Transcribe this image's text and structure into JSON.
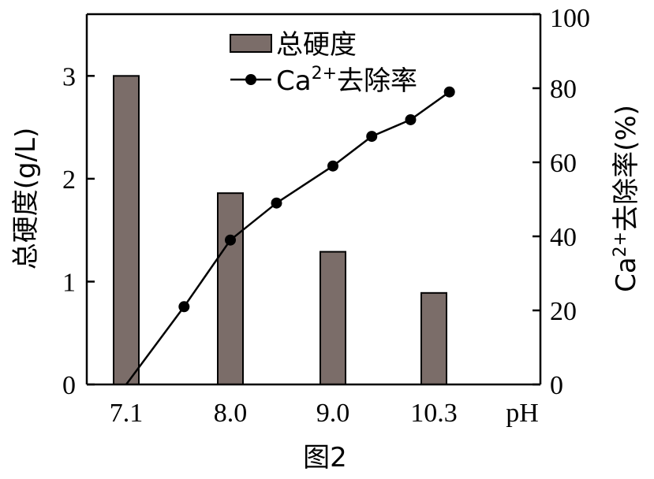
{
  "chart_data": {
    "type": "bar+line",
    "categories": [
      "7.1",
      "8.0",
      "9.0",
      "10.3"
    ],
    "x_unit_label": "pH",
    "bars": {
      "name": "总硬度",
      "values": [
        3.0,
        1.86,
        1.29,
        0.89
      ],
      "color": "#7b6d69"
    },
    "line": {
      "name_prefix": "Ca",
      "name_sup": "2+",
      "name_suffix": "去除率",
      "x_positions": [
        7.1,
        7.6,
        8.0,
        8.45,
        9.0,
        9.5,
        10.0,
        10.5
      ],
      "values": [
        0,
        21,
        39,
        49,
        59,
        67,
        71.5,
        79
      ]
    },
    "y_left": {
      "label": "总硬度(g/L)",
      "range": [
        0,
        3.6
      ],
      "ticks": [
        "0",
        "1",
        "2",
        "3"
      ],
      "tick_values": [
        0,
        1,
        2,
        3
      ]
    },
    "y_right": {
      "label_prefix": "Ca",
      "label_sup": "2+",
      "label_suffix": "去除率(%)",
      "range": [
        0,
        100
      ],
      "ticks": [
        "0",
        "20",
        "40",
        "60",
        "80",
        "100"
      ],
      "tick_values": [
        0,
        20,
        40,
        60,
        80,
        100
      ]
    },
    "legend_position": "top-center",
    "grid": false,
    "caption": "图2"
  }
}
